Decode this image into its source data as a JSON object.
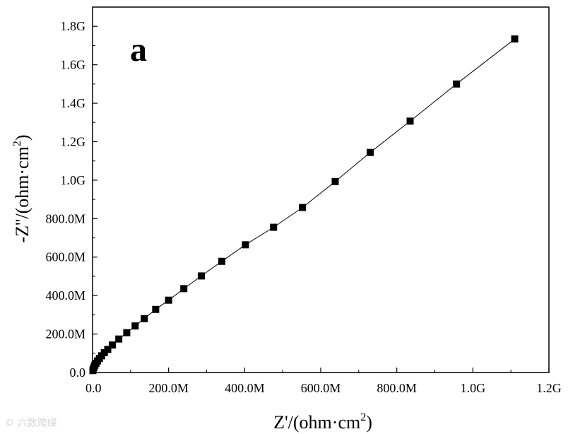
{
  "panel_label": "a",
  "watermark": "© 六数跨媒",
  "chart_data": {
    "type": "scatter",
    "line": true,
    "marker": "square",
    "title": "",
    "xlabel": {
      "main": "Z'/(ohm·cm",
      "sup": "2",
      "close": ")"
    },
    "ylabel": {
      "main": "-Z''/(ohm·cm",
      "sup": "2",
      "close": ")"
    },
    "xlim": [
      0,
      1200000000.0
    ],
    "ylim": [
      0,
      1900000000.0
    ],
    "xticks": [
      {
        "value": 0,
        "label": "0.0"
      },
      {
        "value": 200000000.0,
        "label": "200.0M"
      },
      {
        "value": 400000000.0,
        "label": "400.0M"
      },
      {
        "value": 600000000.0,
        "label": "600.0M"
      },
      {
        "value": 800000000.0,
        "label": "800.0M"
      },
      {
        "value": 1000000000.0,
        "label": "1.0G"
      },
      {
        "value": 1200000000.0,
        "label": "1.2G"
      }
    ],
    "yticks": [
      {
        "value": 0,
        "label": "0.0"
      },
      {
        "value": 200000000.0,
        "label": "200.0M"
      },
      {
        "value": 400000000.0,
        "label": "400.0M"
      },
      {
        "value": 600000000.0,
        "label": "600.0M"
      },
      {
        "value": 800000000.0,
        "label": "800.0M"
      },
      {
        "value": 1000000000.0,
        "label": "1.0G"
      },
      {
        "value": 1200000000.0,
        "label": "1.2G"
      },
      {
        "value": 1400000000.0,
        "label": "1.4G"
      },
      {
        "value": 1600000000.0,
        "label": "1.6G"
      },
      {
        "value": 1800000000.0,
        "label": "1.8G"
      }
    ],
    "grid": false,
    "legend": "none",
    "series": [
      {
        "color": "#000000",
        "x": [
          1000000.0,
          2000000.0,
          4000000.0,
          6000000.0,
          9000000.0,
          13000000.0,
          18000000.0,
          24000000.0,
          31000000.0,
          40000000.0,
          52000000.0,
          69000000.0,
          90000000.0,
          112000000.0,
          136000000.0,
          166000000.0,
          200000000.0,
          240000000.0,
          286000000.0,
          340000000.0,
          402000000.0,
          476000000.0,
          552000000.0,
          638000000.0,
          730000000.0,
          835000000.0,
          957000000.0,
          1110000000.0
        ],
        "y": [
          10000000.0,
          18000000.0,
          28000000.0,
          38000000.0,
          48000000.0,
          60000000.0,
          73000000.0,
          87000000.0,
          103000000.0,
          120000000.0,
          143000000.0,
          174000000.0,
          207000000.0,
          242000000.0,
          280000000.0,
          328000000.0,
          376000000.0,
          436000000.0,
          502000000.0,
          578000000.0,
          664000000.0,
          755000000.0,
          858000000.0,
          993000000.0,
          1144000000.0,
          1307000000.0,
          1500000000.0,
          1734000000.0
        ]
      }
    ]
  }
}
